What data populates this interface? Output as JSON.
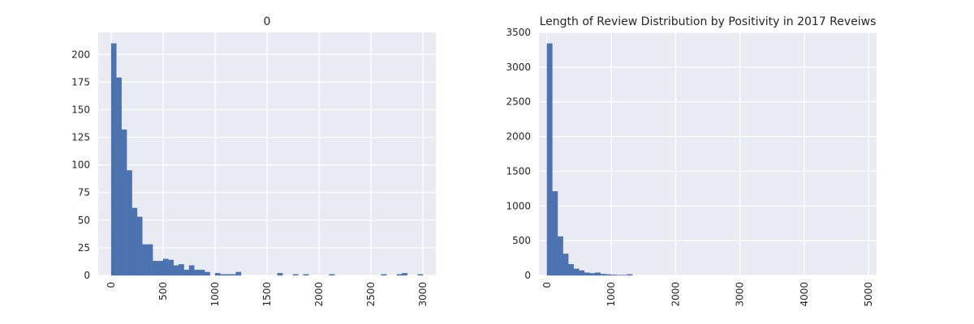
{
  "chart_data": [
    {
      "type": "bar",
      "title": "0",
      "xlabel": "",
      "ylabel": "",
      "xlim": [
        -125,
        3125
      ],
      "ylim": [
        0,
        220
      ],
      "xticks": [
        0,
        500,
        1000,
        1500,
        2000,
        2500,
        3000
      ],
      "yticks": [
        0,
        25,
        50,
        75,
        100,
        125,
        150,
        175,
        200
      ],
      "xtick_labels": [
        "0",
        "500",
        "1000",
        "1500",
        "2000",
        "2500",
        "3000"
      ],
      "ytick_labels": [
        "0",
        "25",
        "50",
        "75",
        "100",
        "125",
        "150",
        "175",
        "200"
      ],
      "xtick_rotation": "vertical",
      "grid": true,
      "bin_width": 50,
      "bin_starts": [
        0,
        50,
        100,
        150,
        200,
        250,
        300,
        350,
        400,
        450,
        500,
        550,
        600,
        650,
        700,
        750,
        800,
        850,
        900,
        950,
        1000,
        1050,
        1100,
        1150,
        1200,
        1250,
        1300,
        1350,
        1400,
        1450,
        1500,
        1550,
        1600,
        1650,
        1700,
        1750,
        1800,
        1850,
        1900,
        1950,
        2000,
        2050,
        2100,
        2150,
        2200,
        2250,
        2300,
        2350,
        2400,
        2450,
        2500,
        2550,
        2600,
        2650,
        2700,
        2750,
        2800,
        2850,
        2900,
        2950
      ],
      "values": [
        210,
        179,
        132,
        95,
        61,
        53,
        28,
        28,
        13,
        13,
        15,
        14,
        9,
        10,
        5,
        9,
        5,
        5,
        3,
        0,
        2,
        1,
        1,
        1,
        3,
        0,
        0,
        0,
        0,
        0,
        0,
        0,
        2,
        0,
        0,
        1,
        0,
        1,
        0,
        0,
        0,
        0,
        1,
        0,
        0,
        0,
        0,
        0,
        0,
        0,
        0,
        0,
        1,
        0,
        0,
        1,
        2,
        0,
        0,
        1
      ]
    },
    {
      "type": "bar",
      "title": "Length of Review Distribution by Positivity in 2017 Reveiws",
      "xlabel": "",
      "ylabel": "",
      "xlim": [
        -125,
        5125
      ],
      "ylim": [
        0,
        3500
      ],
      "xticks": [
        0,
        1000,
        2000,
        3000,
        4000,
        5000
      ],
      "yticks": [
        0,
        500,
        1000,
        1500,
        2000,
        2500,
        3000,
        3500
      ],
      "xtick_labels": [
        "0",
        "1000",
        "2000",
        "3000",
        "4000",
        "5000"
      ],
      "ytick_labels": [
        "0",
        "500",
        "1000",
        "1500",
        "2000",
        "2500",
        "3000",
        "3500"
      ],
      "xtick_rotation": "vertical",
      "grid": true,
      "bin_width": 83,
      "bin_starts": [
        0,
        83,
        166,
        249,
        332,
        415,
        498,
        581,
        664,
        747,
        830,
        913,
        996,
        1079,
        1162,
        1245
      ],
      "values": [
        3340,
        1210,
        560,
        310,
        160,
        95,
        70,
        40,
        30,
        40,
        20,
        15,
        10,
        5,
        5,
        15
      ]
    }
  ],
  "colors": {
    "bar": "#4c72b0",
    "axes_background": "#eaeaf2",
    "grid": "#ffffff",
    "text": "#262626"
  }
}
